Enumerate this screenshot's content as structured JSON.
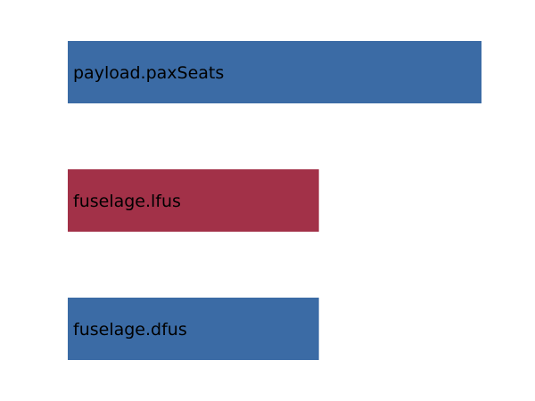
{
  "chart_data": {
    "type": "bar",
    "orientation": "horizontal",
    "title": "",
    "xlabel": "",
    "ylabel": "",
    "grid": false,
    "axes_visible": false,
    "categories": [
      "payload.paxSeats",
      "fuselage.lfus",
      "fuselage.dfus"
    ],
    "values": [
      1.0,
      0.607,
      0.607
    ],
    "colors": [
      "#3b6ba5",
      "#a23148",
      "#3b6ba5"
    ],
    "xlim": [
      0,
      1.0
    ]
  }
}
